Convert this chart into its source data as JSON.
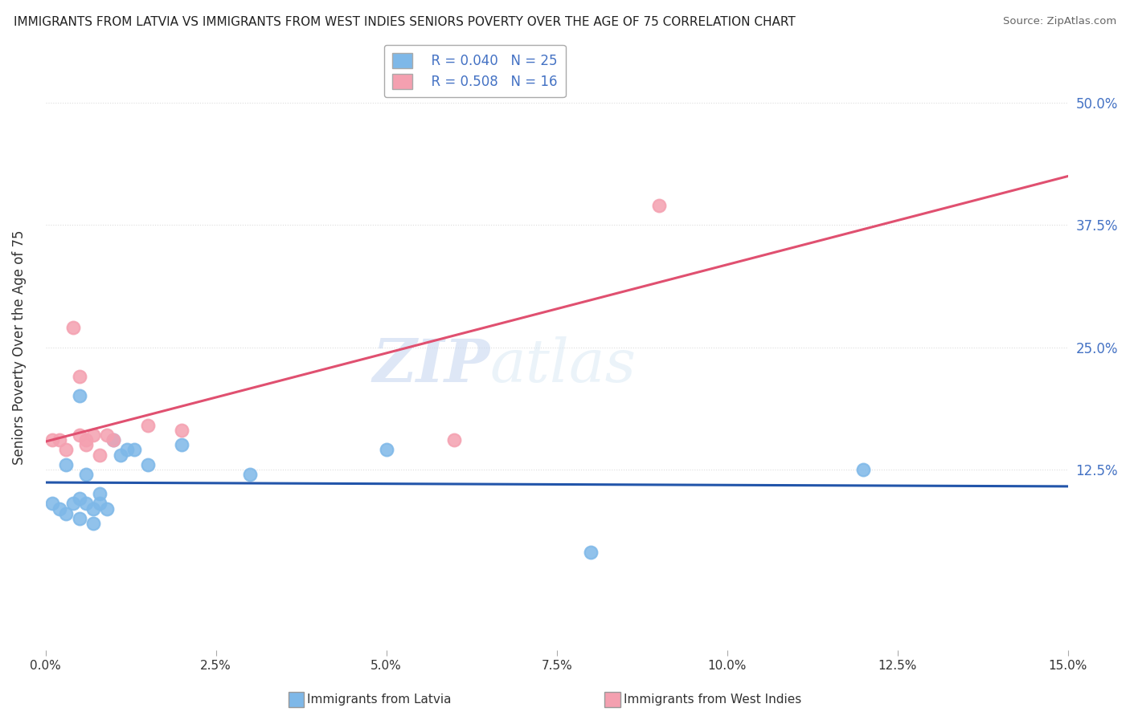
{
  "title": "IMMIGRANTS FROM LATVIA VS IMMIGRANTS FROM WEST INDIES SENIORS POVERTY OVER THE AGE OF 75 CORRELATION CHART",
  "source": "Source: ZipAtlas.com",
  "ylabel": "Seniors Poverty Over the Age of 75",
  "xmin": 0.0,
  "xmax": 0.15,
  "ymin": -0.06,
  "ymax": 0.56,
  "ytick_vals": [
    0.125,
    0.25,
    0.375,
    0.5
  ],
  "ytick_labels": [
    "12.5%",
    "25.0%",
    "37.5%",
    "50.0%"
  ],
  "series_latvia": {
    "label": "Immigrants from Latvia",
    "color": "#7EB8E8",
    "R": 0.04,
    "N": 25,
    "line_color": "#2255AA",
    "x": [
      0.001,
      0.002,
      0.003,
      0.003,
      0.004,
      0.005,
      0.005,
      0.005,
      0.006,
      0.006,
      0.007,
      0.007,
      0.008,
      0.008,
      0.009,
      0.01,
      0.011,
      0.012,
      0.013,
      0.015,
      0.02,
      0.03,
      0.05,
      0.08,
      0.12
    ],
    "y": [
      0.09,
      0.085,
      0.13,
      0.08,
      0.09,
      0.095,
      0.075,
      0.2,
      0.12,
      0.09,
      0.085,
      0.07,
      0.1,
      0.09,
      0.085,
      0.155,
      0.14,
      0.145,
      0.145,
      0.13,
      0.15,
      0.12,
      0.145,
      0.04,
      0.125
    ]
  },
  "series_westindies": {
    "label": "Immigrants from West Indies",
    "color": "#F4A0B0",
    "R": 0.508,
    "N": 16,
    "line_color": "#E05070",
    "x": [
      0.001,
      0.002,
      0.003,
      0.004,
      0.005,
      0.005,
      0.006,
      0.006,
      0.007,
      0.008,
      0.009,
      0.01,
      0.015,
      0.02,
      0.06,
      0.09
    ],
    "y": [
      0.155,
      0.155,
      0.145,
      0.27,
      0.16,
      0.22,
      0.155,
      0.15,
      0.16,
      0.14,
      0.16,
      0.155,
      0.17,
      0.165,
      0.155,
      0.395
    ]
  },
  "watermark_zip": "ZIP",
  "watermark_atlas": "atlas",
  "background_color": "#ffffff",
  "grid_color": "#dddddd",
  "legend_border_color": "#aaaaaa"
}
